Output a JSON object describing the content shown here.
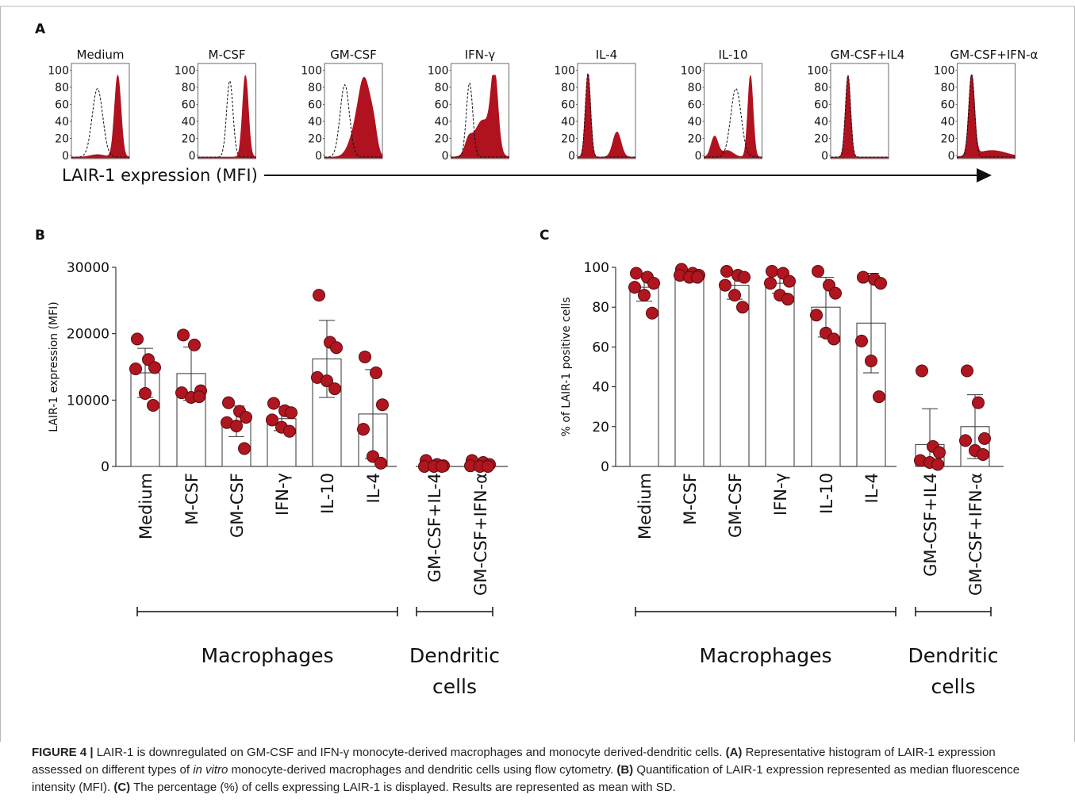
{
  "panels": {
    "a": {
      "letter": "A",
      "histograms": [
        {
          "label": "Medium",
          "positive_peak": 0.8,
          "dashed_peak": 0.32
        },
        {
          "label": "M-CSF",
          "positive_peak": 0.82,
          "dashed_peak": 0.38
        },
        {
          "label": "GM-CSF",
          "positive_peak": 0.68,
          "dashed_peak": 0.33
        },
        {
          "label": "IFN-γ",
          "positive_peak": 0.68,
          "dashed_peak": 0.32
        },
        {
          "label": "IL-4",
          "positive_peak": 0.12,
          "dashed_peak": 0.12
        },
        {
          "label": "IL-10",
          "positive_peak": 0.8,
          "dashed_peak": 0.52
        },
        {
          "label": "GM-CSF+IL4",
          "positive_peak": 0.14,
          "dashed_peak": 0.14
        },
        {
          "label": "GM-CSF+IFN-α",
          "positive_peak": 0.14,
          "dashed_peak": 0.14
        }
      ],
      "yticks": [
        "0",
        "20",
        "40",
        "60",
        "80",
        "100"
      ],
      "axis_label": "LAIR-1 expression (MFI)"
    },
    "b": {
      "letter": "B"
    },
    "c": {
      "letter": "C"
    }
  },
  "chart_data": [
    {
      "type": "bar",
      "panel": "B",
      "ylabel": "LAIR-1 expression (MFI)",
      "ylim": [
        0,
        30000
      ],
      "yticks": [
        "0",
        "10000",
        "20000",
        "30000"
      ],
      "categories": [
        "Medium",
        "M-CSF",
        "GM-CSF",
        "IFN-γ",
        "IL-10",
        "IL-4",
        "GM-CSF+IL-4",
        "GM-CSF+IFN-α"
      ],
      "means": [
        14100,
        14000,
        6800,
        7200,
        16200,
        7900,
        200,
        300
      ],
      "sd": [
        3700,
        4000,
        2300,
        1800,
        5800,
        6700,
        400,
        400
      ],
      "points": [
        [
          19200,
          16100,
          14900,
          14700,
          11000,
          9200
        ],
        [
          19800,
          18300,
          11400,
          11100,
          10400,
          10500
        ],
        [
          9600,
          8300,
          7400,
          6600,
          6100,
          2700
        ],
        [
          9500,
          8400,
          8100,
          7000,
          5900,
          5300
        ],
        [
          25800,
          18700,
          17900,
          13400,
          12900,
          11700
        ],
        [
          16500,
          14100,
          9300,
          5600,
          1500,
          500
        ],
        [
          900,
          300,
          100,
          0,
          0,
          0
        ],
        [
          900,
          600,
          300,
          100,
          0,
          0
        ]
      ],
      "groups": [
        {
          "label_lines": [
            "Macrophages"
          ],
          "from": 0,
          "to": 5
        },
        {
          "label_lines": [
            "Dendritic",
            "cells"
          ],
          "from": 6,
          "to": 7
        }
      ]
    },
    {
      "type": "bar",
      "panel": "C",
      "ylabel": "% of LAIR-1 positive cells",
      "ylim": [
        0,
        100
      ],
      "yticks": [
        "0",
        "20",
        "40",
        "60",
        "80",
        "100"
      ],
      "categories": [
        "Medium",
        "M-CSF",
        "GM-CSF",
        "IFN-γ",
        "IL-10",
        "IL-4",
        "GM-CSF+IL4",
        "GM-CSF+IFN-α"
      ],
      "means": [
        90,
        97,
        91,
        92,
        80,
        72,
        11,
        20
      ],
      "sd": [
        7,
        1.5,
        7,
        5,
        15,
        25,
        18,
        16
      ],
      "points": [
        [
          97,
          95,
          92,
          90,
          86,
          77
        ],
        [
          99,
          97,
          96,
          96,
          95,
          95
        ],
        [
          98,
          96,
          95,
          91,
          86,
          80
        ],
        [
          98,
          97,
          93,
          92,
          86,
          84
        ],
        [
          98,
          91,
          87,
          76,
          67,
          64
        ],
        [
          95,
          94,
          92,
          63,
          53,
          35
        ],
        [
          48,
          10,
          7,
          3,
          2,
          1
        ],
        [
          48,
          32,
          14,
          13,
          8,
          6
        ]
      ],
      "groups": [
        {
          "label_lines": [
            "Macrophages"
          ],
          "from": 0,
          "to": 5
        },
        {
          "label_lines": [
            "Dendritic",
            "cells"
          ],
          "from": 6,
          "to": 7
        }
      ]
    }
  ],
  "caption": {
    "fig": "FIGURE 4 |",
    "title": " LAIR-1 is downregulated on GM-CSF and IFN-γ monocyte-derived macrophages and monocyte derived-dendritic cells. ",
    "a_tag": "(A)",
    "a_text1": " Representative histogram of LAIR-1 expression assessed on different types of ",
    "a_italic": "in vitro",
    "a_text2": " monocyte-derived macrophages and dendritic cells using flow cytometry. ",
    "b_tag": "(B)",
    "b_text": " Quantification of LAIR-1 expression represented as median fluorescence intensity (MFI). ",
    "c_tag": "(C)",
    "c_text": " The percentage (%) of cells expressing LAIR-1 is displayed. Results are represented as mean with SD."
  },
  "colors": {
    "fill": "#b0121f",
    "dot": "#b0161f",
    "dot_stroke": "#5a0a10",
    "frame": "#b8b8b8"
  }
}
